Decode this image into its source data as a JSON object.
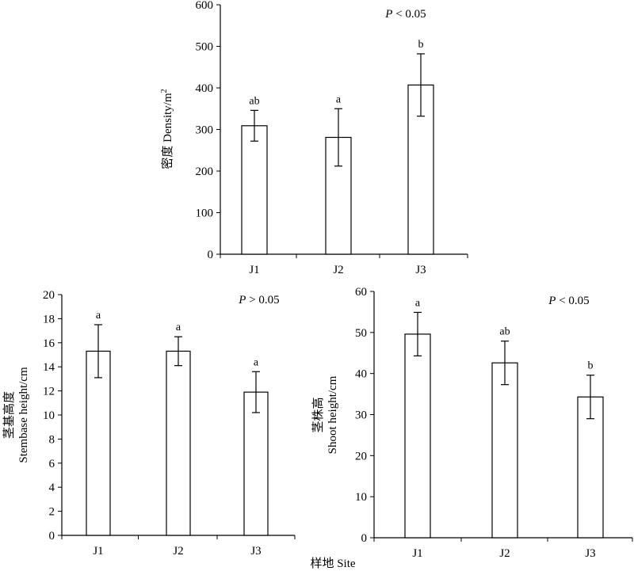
{
  "chart_data": [
    {
      "type": "bar",
      "id": "density",
      "categories": [
        "J1",
        "J2",
        "J3"
      ],
      "values": [
        309,
        281,
        407
      ],
      "error": [
        37,
        69,
        75
      ],
      "significance": [
        "ab",
        "a",
        "b"
      ],
      "annotation": {
        "italic": "P",
        "rest": " < 0.05"
      },
      "ylabel": {
        "cn": "密度",
        "en": "Density/m",
        "sup": "2"
      },
      "ylim": [
        0,
        600
      ],
      "yticks": [
        0,
        100,
        200,
        300,
        400,
        500,
        600
      ]
    },
    {
      "type": "bar",
      "id": "stembase",
      "categories": [
        "J1",
        "J2",
        "J3"
      ],
      "values": [
        15.3,
        15.3,
        11.9
      ],
      "error": [
        2.2,
        1.2,
        1.7
      ],
      "significance": [
        "a",
        "a",
        "a"
      ],
      "annotation": {
        "italic": "P",
        "rest": " > 0.05"
      },
      "ylabel": {
        "cn": "茎基高度",
        "en": "Stembase height/cm"
      },
      "ylim": [
        0,
        20
      ],
      "yticks": [
        0,
        2,
        4,
        6,
        8,
        10,
        12,
        14,
        16,
        18,
        20
      ]
    },
    {
      "type": "bar",
      "id": "shoot",
      "categories": [
        "J1",
        "J2",
        "J3"
      ],
      "values": [
        49.6,
        42.6,
        34.3
      ],
      "error": [
        5.3,
        5.3,
        5.3
      ],
      "significance": [
        "a",
        "ab",
        "b"
      ],
      "annotation": {
        "italic": "P",
        "rest": " < 0.05"
      },
      "ylabel": {
        "cn": "茎株高",
        "en": "Shoot height/cm"
      },
      "ylim": [
        0,
        60
      ],
      "yticks": [
        0,
        10,
        20,
        30,
        40,
        50,
        60
      ]
    }
  ],
  "xlabel": {
    "cn": "样地",
    "en": "Site"
  }
}
